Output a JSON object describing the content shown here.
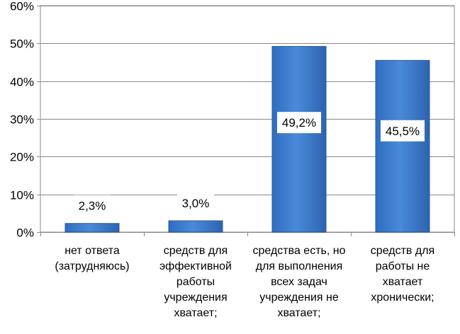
{
  "chart_data": {
    "type": "bar",
    "categories": [
      "нет ответа\n(затрудняюсь)",
      "средств для\nэффективной\nработы\nучреждения\nхватает;",
      "средства есть, но\nдля выполнения\nвсех задач\nучреждения не\nхватает;",
      "средств для\nработы не\nхватает\nхронически;"
    ],
    "values": [
      2.3,
      3.0,
      49.2,
      45.5
    ],
    "data_labels": [
      "2,3%",
      "3,0%",
      "49,2%",
      "45,5%"
    ],
    "ylim": [
      0,
      60
    ],
    "yticks": [
      0,
      10,
      20,
      30,
      40,
      50,
      60
    ],
    "ytick_labels": [
      "0%",
      "10%",
      "20%",
      "30%",
      "40%",
      "50%",
      "60%"
    ],
    "grid": true,
    "bar_color": "#3f7fd0",
    "bar_edge": "#2a5a9e",
    "title": "",
    "xlabel": "",
    "ylabel": ""
  }
}
